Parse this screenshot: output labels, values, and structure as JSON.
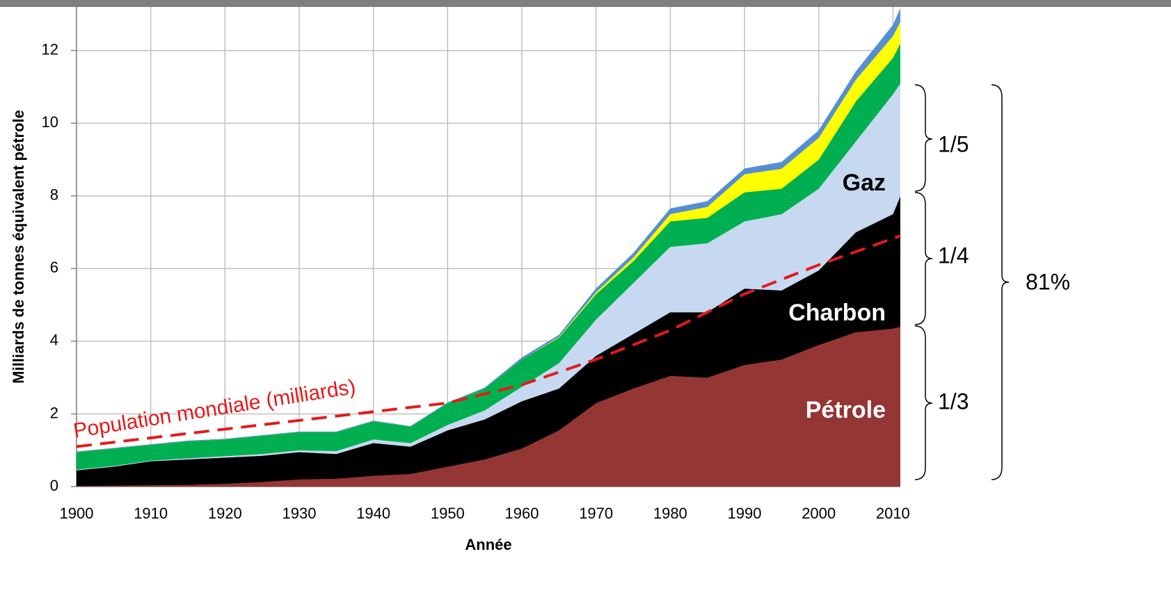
{
  "chart_data": {
    "type": "stacked_area",
    "y_label": "Milliards de tonnes équivalent pétrole",
    "x_label": "Année",
    "x": [
      1900,
      1905,
      1910,
      1915,
      1920,
      1925,
      1930,
      1935,
      1940,
      1945,
      1950,
      1955,
      1960,
      1965,
      1970,
      1975,
      1980,
      1985,
      1990,
      1995,
      2000,
      2005,
      2010,
      2011
    ],
    "series": [
      {
        "name": "Pétrole",
        "color": "#943634",
        "values": [
          0.02,
          0.03,
          0.04,
          0.05,
          0.08,
          0.13,
          0.2,
          0.22,
          0.3,
          0.35,
          0.55,
          0.75,
          1.05,
          1.55,
          2.3,
          2.7,
          3.05,
          3.0,
          3.35,
          3.5,
          3.9,
          4.25,
          4.35,
          4.4
        ]
      },
      {
        "name": "Charbon",
        "color": "#000000",
        "values": [
          0.43,
          0.52,
          0.66,
          0.7,
          0.72,
          0.72,
          0.75,
          0.68,
          0.9,
          0.75,
          1.0,
          1.1,
          1.3,
          1.15,
          1.3,
          1.5,
          1.75,
          1.8,
          2.1,
          1.9,
          2.05,
          2.75,
          3.15,
          3.6
        ]
      },
      {
        "name": "Gaz",
        "color": "#c6d9f1",
        "values": [
          0.02,
          0.02,
          0.02,
          0.03,
          0.04,
          0.05,
          0.05,
          0.08,
          0.1,
          0.1,
          0.15,
          0.25,
          0.4,
          0.7,
          1.0,
          1.4,
          1.8,
          1.9,
          1.85,
          2.1,
          2.25,
          2.5,
          3.3,
          3.1
        ]
      },
      {
        "color": "#00b050",
        "values": [
          0.48,
          0.48,
          0.43,
          0.47,
          0.46,
          0.5,
          0.5,
          0.52,
          0.5,
          0.45,
          0.6,
          0.6,
          0.75,
          0.7,
          0.7,
          0.6,
          0.7,
          0.7,
          0.8,
          0.7,
          0.8,
          1.1,
          1.0,
          1.1
        ]
      },
      {
        "color": "#ffff00",
        "values": [
          0,
          0,
          0,
          0,
          0,
          0,
          0,
          0,
          0,
          0,
          0,
          0,
          0,
          0.02,
          0.05,
          0.1,
          0.2,
          0.3,
          0.5,
          0.55,
          0.6,
          0.6,
          0.6,
          0.6
        ]
      },
      {
        "color": "#558ed5",
        "values": [
          0.01,
          0.01,
          0.01,
          0.01,
          0.01,
          0.01,
          0.01,
          0.01,
          0.01,
          0.01,
          0.01,
          0.02,
          0.05,
          0.05,
          0.1,
          0.12,
          0.15,
          0.15,
          0.15,
          0.18,
          0.2,
          0.22,
          0.3,
          0.35
        ]
      }
    ],
    "population": {
      "name": "Population mondiale (milliards)",
      "color": "#e41a1a",
      "dashed": true,
      "x": [
        1900,
        1950,
        1960,
        1970,
        1980,
        1990,
        2000,
        2011
      ],
      "values": [
        1.1,
        2.3,
        2.8,
        3.5,
        4.3,
        5.3,
        6.1,
        6.9
      ]
    },
    "xlim": [
      1900,
      2011
    ],
    "ylim": [
      0,
      13.2
    ],
    "xticks": [
      1900,
      1910,
      1920,
      1930,
      1940,
      1950,
      1960,
      1970,
      1980,
      1990,
      2000,
      2010
    ],
    "yticks": [
      0,
      2,
      4,
      6,
      8,
      10,
      12
    ],
    "grid": true,
    "annotations": [
      "1/5",
      "1/4",
      "1/3",
      "81%"
    ]
  }
}
